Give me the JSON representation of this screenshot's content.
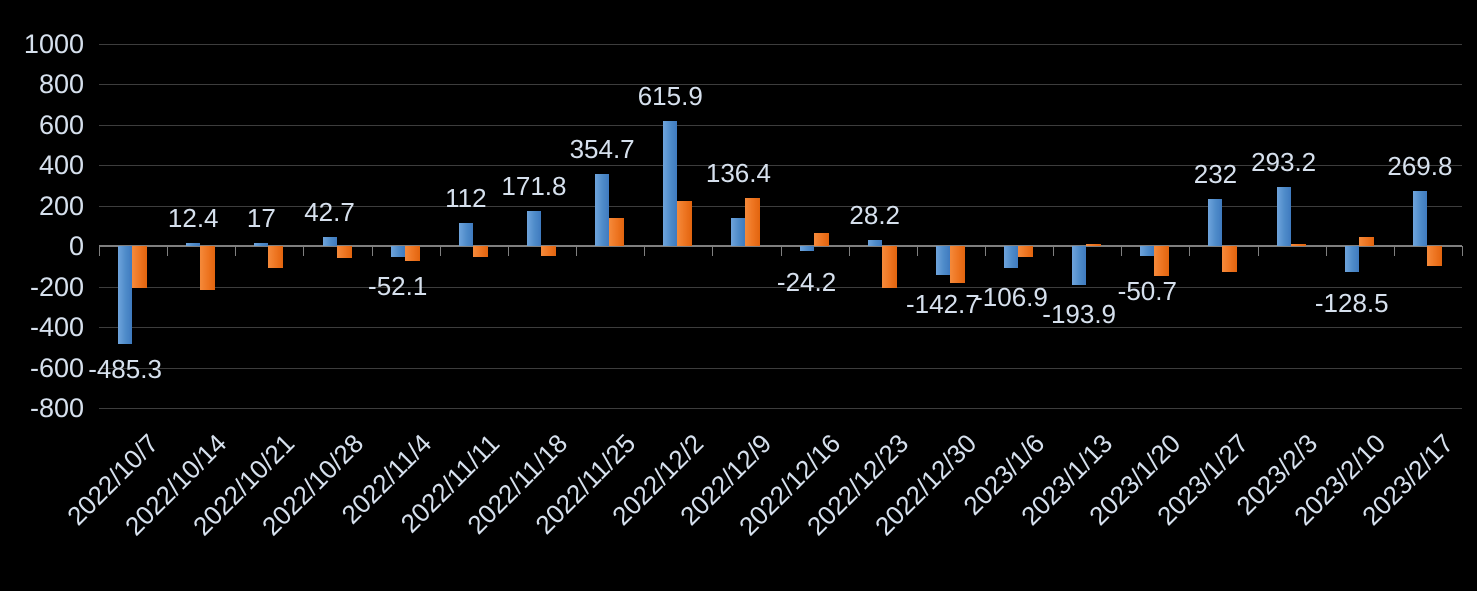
{
  "chart_data": {
    "type": "bar",
    "title": "",
    "categories": [
      "2022/10/7",
      "2022/10/14",
      "2022/10/21",
      "2022/10/28",
      "2022/11/4",
      "2022/11/11",
      "2022/11/18",
      "2022/11/25",
      "2022/12/2",
      "2022/12/9",
      "2022/12/16",
      "2022/12/23",
      "2022/12/30",
      "2023/1/6",
      "2023/1/13",
      "2023/1/20",
      "2023/1/27",
      "2023/2/3",
      "2023/2/10",
      "2023/2/17"
    ],
    "series": [
      {
        "name": "blue-series",
        "color": "#4e8bc9",
        "values": [
          -485.3,
          12.4,
          17,
          42.7,
          -52.1,
          112,
          171.8,
          354.7,
          615.9,
          136.4,
          -24.2,
          28.2,
          -142.7,
          -106.9,
          -193.9,
          -50.7,
          232,
          293.2,
          -128.5,
          269.8
        ],
        "data_labels": [
          "-485.3",
          "12.4",
          "17",
          "42.7",
          "-52.1",
          "112",
          "171.8",
          "354.7",
          "615.9",
          "136.4",
          "-24.2",
          "28.2",
          "-142.7",
          "-106.9",
          "-193.9",
          "-50.7",
          "232",
          "293.2",
          "-128.5",
          "269.8"
        ]
      },
      {
        "name": "orange-series",
        "color": "#ed7420",
        "values": [
          -205,
          -215,
          -110,
          -60,
          -75,
          -55,
          -50,
          140,
          220,
          235,
          65,
          -205,
          -185,
          -55,
          10,
          -150,
          -130,
          10,
          45,
          -100
        ],
        "data_labels": []
      }
    ],
    "y_axis": {
      "min": -800,
      "max": 1000,
      "tick_step": 200,
      "tick_labels": [
        "1000",
        "800",
        "600",
        "400",
        "200",
        "0",
        "-200",
        "-400",
        "-600",
        "-800"
      ]
    },
    "grid": true,
    "legend": "none",
    "background_color": "#000000",
    "text_color": "#d6e0ed",
    "grid_color": "#3d3d3d",
    "axis_color": "#7f7f7f",
    "label_dy_negative": {
      "0": 2,
      "4": 6,
      "10": 8,
      "12": 6,
      "13": 6,
      "14": 6,
      "15": 12,
      "18": 8
    }
  }
}
